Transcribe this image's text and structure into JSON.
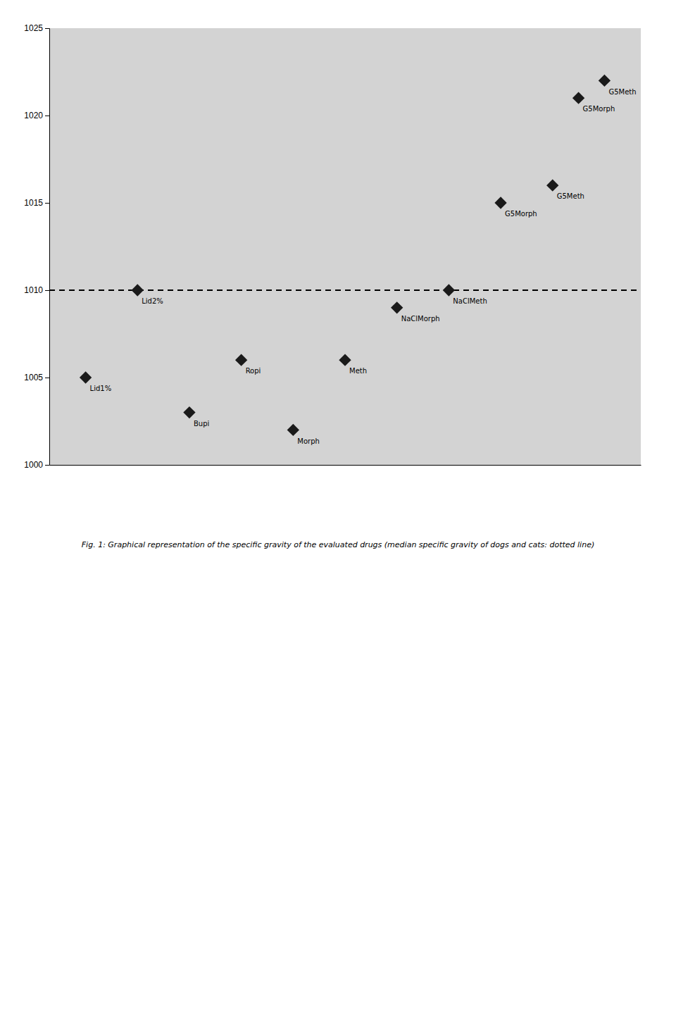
{
  "chart_data": {
    "type": "scatter",
    "x": [
      1,
      2,
      3,
      4,
      5,
      6,
      7,
      8,
      9,
      10,
      10.5,
      11
    ],
    "values": [
      1005,
      1010,
      1003,
      1006,
      1002,
      1006,
      1009,
      1010,
      1015,
      1016,
      1021,
      1022
    ],
    "labels": [
      "Lid1%",
      "Lid2%",
      "Bupi",
      "Ropi",
      "Morph",
      "Meth",
      "NaClMorph",
      "NaClMeth",
      "G5Morph",
      "G5Meth",
      "G5Morph",
      "G5Meth"
    ],
    "marker": "diamond",
    "color": "#1a1a1a",
    "background_color": "#d3d3d3",
    "annotations": [
      {
        "y": 1010,
        "line_style": "dashed",
        "color": "#000000"
      }
    ],
    "xlim": [
      0.3,
      11.7
    ],
    "xticks": [],
    "ylim": [
      1000,
      1025
    ],
    "yticks": [
      1000,
      1005,
      1010,
      1015,
      1020,
      1025
    ],
    "tick_labels": "y",
    "grid": false,
    "caption": "Fig. 1: Graphical representation of the specific gravity of the evaluated drugs (median specific gravity of dogs and cats: dotted line)"
  }
}
